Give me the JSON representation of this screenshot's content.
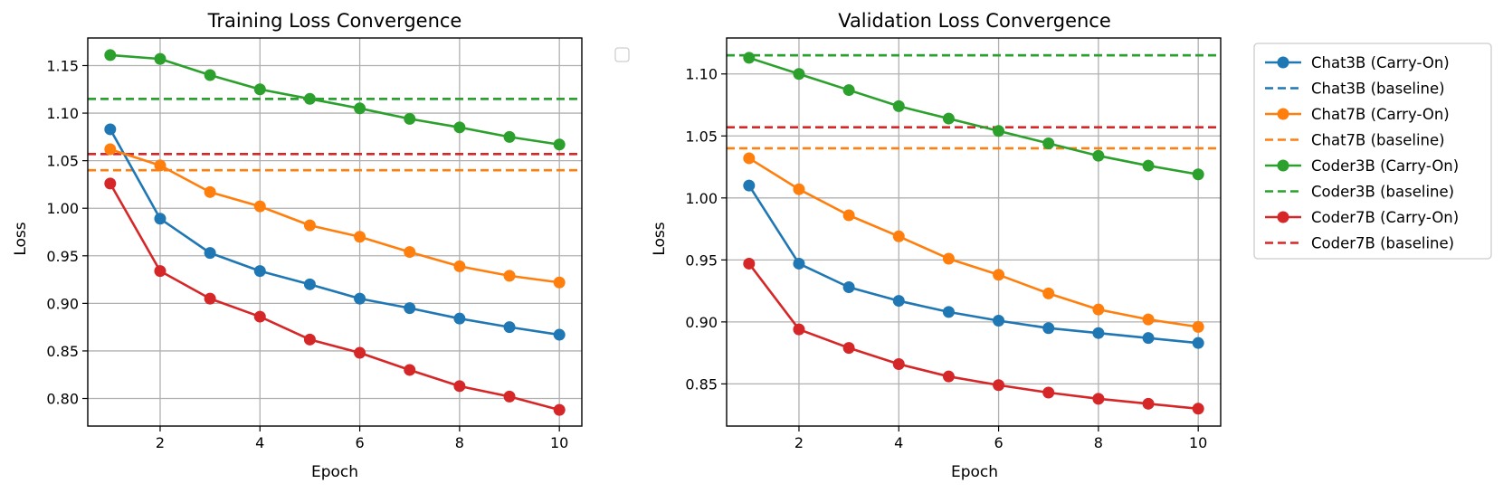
{
  "colors": {
    "chat3b": "#1f77b4",
    "chat7b": "#ff7f0e",
    "coder3b": "#2ca02c",
    "coder7b": "#d62728"
  },
  "chart_data": [
    {
      "type": "line",
      "title": "Training Loss Convergence",
      "xlabel": "Epoch",
      "ylabel": "Loss",
      "grid": true,
      "xlim": [
        0.55,
        10.45
      ],
      "ylim": [
        0.771,
        1.179
      ],
      "xticks": [
        2,
        4,
        6,
        8,
        10
      ],
      "yticks": [
        0.8,
        0.85,
        0.9,
        0.95,
        1.0,
        1.05,
        1.1,
        1.15
      ],
      "ytick_labels": [
        "0.80",
        "0.85",
        "0.90",
        "0.95",
        "1.00",
        "1.05",
        "1.10",
        "1.15"
      ],
      "x": [
        1,
        2,
        3,
        4,
        5,
        6,
        7,
        8,
        9,
        10
      ],
      "series": [
        {
          "name": "Chat3B (Carry-On)",
          "color_key": "chat3b",
          "values": [
            1.083,
            0.989,
            0.953,
            0.934,
            0.92,
            0.905,
            0.895,
            0.884,
            0.875,
            0.867
          ]
        },
        {
          "name": "Chat7B (Carry-On)",
          "color_key": "chat7b",
          "values": [
            1.062,
            1.045,
            1.017,
            1.002,
            0.982,
            0.97,
            0.954,
            0.939,
            0.929,
            0.922
          ]
        },
        {
          "name": "Coder3B (Carry-On)",
          "color_key": "coder3b",
          "values": [
            1.161,
            1.157,
            1.14,
            1.125,
            1.115,
            1.105,
            1.094,
            1.085,
            1.075,
            1.067
          ]
        },
        {
          "name": "Coder7B (Carry-On)",
          "color_key": "coder7b",
          "values": [
            1.026,
            0.934,
            0.905,
            0.886,
            0.862,
            0.848,
            0.83,
            0.813,
            0.802,
            0.788
          ]
        }
      ],
      "baselines": [
        {
          "name": "Chat3B (baseline)",
          "color_key": "chat3b",
          "value": 1.115
        },
        {
          "name": "Chat7B (baseline)",
          "color_key": "chat7b",
          "value": 1.04
        },
        {
          "name": "Coder3B (baseline)",
          "color_key": "coder3b",
          "value": 1.115
        },
        {
          "name": "Coder7B (baseline)",
          "color_key": "coder7b",
          "value": 1.057
        }
      ]
    },
    {
      "type": "line",
      "title": "Validation Loss Convergence",
      "xlabel": "Epoch",
      "ylabel": "Loss",
      "grid": true,
      "xlim": [
        0.55,
        10.45
      ],
      "ylim": [
        0.816,
        1.129
      ],
      "xticks": [
        2,
        4,
        6,
        8,
        10
      ],
      "yticks": [
        0.85,
        0.9,
        0.95,
        1.0,
        1.05,
        1.1
      ],
      "ytick_labels": [
        "0.85",
        "0.90",
        "0.95",
        "1.00",
        "1.05",
        "1.10"
      ],
      "x": [
        1,
        2,
        3,
        4,
        5,
        6,
        7,
        8,
        9,
        10
      ],
      "series": [
        {
          "name": "Chat3B (Carry-On)",
          "color_key": "chat3b",
          "values": [
            1.01,
            0.947,
            0.928,
            0.917,
            0.908,
            0.901,
            0.895,
            0.891,
            0.887,
            0.883
          ]
        },
        {
          "name": "Chat7B (Carry-On)",
          "color_key": "chat7b",
          "values": [
            1.032,
            1.007,
            0.986,
            0.969,
            0.951,
            0.938,
            0.923,
            0.91,
            0.902,
            0.896
          ]
        },
        {
          "name": "Coder3B (Carry-On)",
          "color_key": "coder3b",
          "values": [
            1.113,
            1.1,
            1.087,
            1.074,
            1.064,
            1.054,
            1.044,
            1.034,
            1.026,
            1.019
          ]
        },
        {
          "name": "Coder7B (Carry-On)",
          "color_key": "coder7b",
          "values": [
            0.947,
            0.894,
            0.879,
            0.866,
            0.856,
            0.849,
            0.843,
            0.838,
            0.834,
            0.83
          ]
        }
      ],
      "baselines": [
        {
          "name": "Chat3B (baseline)",
          "color_key": "chat3b",
          "value": 1.115
        },
        {
          "name": "Chat7B (baseline)",
          "color_key": "chat7b",
          "value": 1.04
        },
        {
          "name": "Coder3B (baseline)",
          "color_key": "coder3b",
          "value": 1.115
        },
        {
          "name": "Coder7B (baseline)",
          "color_key": "coder7b",
          "value": 1.057
        }
      ]
    }
  ],
  "legend": {
    "placement": "outside-right",
    "entries": [
      {
        "label": "Chat3B (Carry-On)",
        "color_key": "chat3b",
        "style": "line-marker"
      },
      {
        "label": "Chat3B (baseline)",
        "color_key": "chat3b",
        "style": "dashed"
      },
      {
        "label": "Chat7B (Carry-On)",
        "color_key": "chat7b",
        "style": "line-marker"
      },
      {
        "label": "Chat7B (baseline)",
        "color_key": "chat7b",
        "style": "dashed"
      },
      {
        "label": "Coder3B (Carry-On)",
        "color_key": "coder3b",
        "style": "line-marker"
      },
      {
        "label": "Coder3B (baseline)",
        "color_key": "coder3b",
        "style": "dashed"
      },
      {
        "label": "Coder7B (Carry-On)",
        "color_key": "coder7b",
        "style": "line-marker"
      },
      {
        "label": "Coder7B (baseline)",
        "color_key": "coder7b",
        "style": "dashed"
      }
    ]
  }
}
